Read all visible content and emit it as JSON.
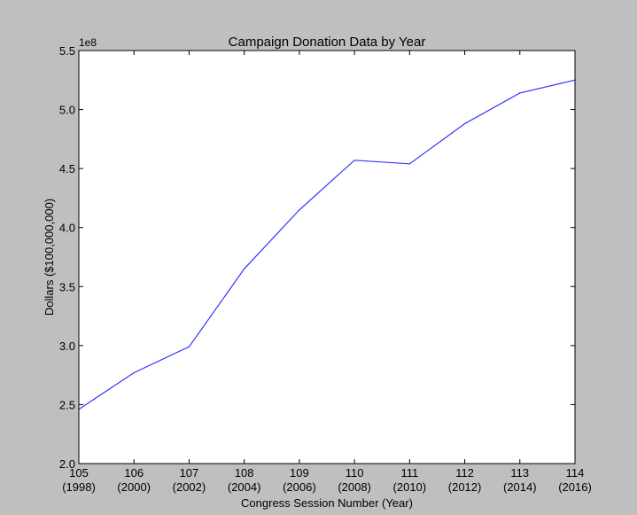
{
  "chart_data": {
    "type": "line",
    "title": "Campaign Donation Data by Year",
    "xlabel": "Congress Session Number (Year)",
    "ylabel": "Dollars ($100,000,000)",
    "y_offset_label": "1e8",
    "x": [
      105,
      106,
      107,
      108,
      109,
      110,
      111,
      112,
      113,
      114
    ],
    "x_tick_labels": [
      [
        "105",
        "(1998)"
      ],
      [
        "106",
        "(2000)"
      ],
      [
        "107",
        "(2002)"
      ],
      [
        "108",
        "(2004)"
      ],
      [
        "109",
        "(2006)"
      ],
      [
        "110",
        "(2008)"
      ],
      [
        "111",
        "(2010)"
      ],
      [
        "112",
        "(2012)"
      ],
      [
        "113",
        "(2014)"
      ],
      [
        "114",
        "(2016)"
      ]
    ],
    "y_ticks": [
      2.0,
      2.5,
      3.0,
      3.5,
      4.0,
      4.5,
      5.0,
      5.5
    ],
    "y_tick_labels": [
      "2.0",
      "2.5",
      "3.0",
      "3.5",
      "4.0",
      "4.5",
      "5.0",
      "5.5"
    ],
    "series": [
      {
        "values": [
          2.46,
          2.77,
          2.99,
          3.65,
          4.15,
          4.57,
          4.54,
          4.88,
          5.14,
          5.25
        ],
        "color": "#3333ff"
      }
    ],
    "xlim": [
      105,
      114
    ],
    "ylim": [
      2.0,
      5.5
    ],
    "grid": false,
    "legend": "none"
  }
}
